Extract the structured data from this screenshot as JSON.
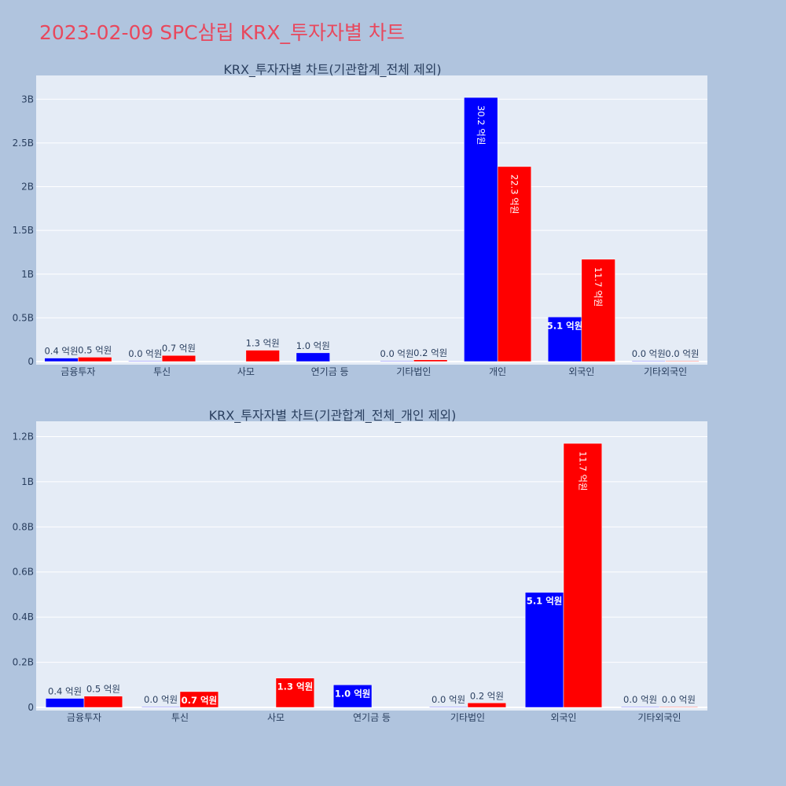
{
  "page": {
    "title": "2023-02-09 SPC삼립 KRX_투자자별 차트",
    "background": "#b0c4de",
    "plot_background": "#e5ecf6",
    "title_color": "#e8485d"
  },
  "chart_data": [
    {
      "type": "bar",
      "title": "KRX_투자자별 차트(기관합계_전체 제외)",
      "categories": [
        "금융투자",
        "투신",
        "사모",
        "연기금 등",
        "기타법인",
        "개인",
        "외국인",
        "기타외국인"
      ],
      "value_unit": "억원",
      "series": [
        {
          "color": "#0000ff",
          "values": [
            0.4,
            0.0,
            null,
            1.0,
            0.0,
            30.2,
            5.1,
            0.0
          ],
          "labels": [
            "0.4 억원",
            "0.0 억원",
            null,
            "1.0 억원",
            "0.0 억원",
            "30.2 억원",
            "5.1 억원",
            "0.0 억원"
          ]
        },
        {
          "color": "#ff0000",
          "values": [
            0.5,
            0.7,
            1.3,
            null,
            0.2,
            22.3,
            11.7,
            0.0
          ],
          "labels": [
            "0.5 억원",
            "0.7 억원",
            "1.3 억원",
            null,
            "0.2 억원",
            "22.3 억원",
            "11.7 억원",
            "0.0 억원"
          ]
        }
      ],
      "ylim": [
        0,
        32
      ],
      "yticks": [
        0,
        5,
        10,
        15,
        20,
        25,
        30
      ],
      "ytick_labels": [
        "0",
        "0.5B",
        "1B",
        "1.5B",
        "2B",
        "2.5B",
        "3B"
      ],
      "grid": true,
      "legend": "none"
    },
    {
      "type": "bar",
      "title": "KRX_투자자별 차트(기관합계_전체_개인 제외)",
      "categories": [
        "금융투자",
        "투신",
        "사모",
        "연기금 등",
        "기타법인",
        "외국인",
        "기타외국인"
      ],
      "value_unit": "억원",
      "series": [
        {
          "color": "#0000ff",
          "values": [
            0.4,
            0.0,
            null,
            1.0,
            0.0,
            5.1,
            0.0
          ],
          "labels": [
            "0.4 억원",
            "0.0 억원",
            null,
            "1.0 억원",
            "0.0 억원",
            "5.1 억원",
            "0.0 억원"
          ]
        },
        {
          "color": "#ff0000",
          "values": [
            0.5,
            0.7,
            1.3,
            null,
            0.2,
            11.7,
            0.0
          ],
          "labels": [
            "0.5 억원",
            "0.7 억원",
            "1.3 억원",
            null,
            "0.2 억원",
            "11.7 억원",
            "0.0 억원"
          ]
        }
      ],
      "ylim": [
        0,
        12.4
      ],
      "yticks": [
        0,
        2,
        4,
        6,
        8,
        10,
        12
      ],
      "ytick_labels": [
        "0",
        "0.2B",
        "0.4B",
        "0.6B",
        "0.8B",
        "1B",
        "1.2B"
      ],
      "grid": true,
      "legend": "none"
    }
  ]
}
